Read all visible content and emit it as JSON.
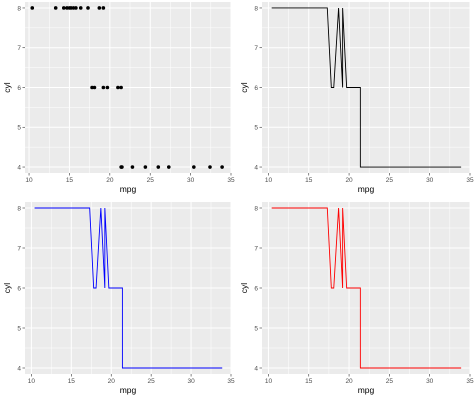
{
  "chart_data": [
    {
      "type": "scatter",
      "xlabel": "mpg",
      "ylabel": "cyl",
      "xlim": [
        9.5,
        35
      ],
      "ylim": [
        3.85,
        8.15
      ],
      "x_ticks": [
        10,
        15,
        20,
        25,
        30,
        35
      ],
      "y_ticks": [
        4,
        5,
        6,
        7,
        8
      ],
      "grid": true,
      "color": "#000000",
      "points": [
        {
          "x": 10.4,
          "y": 8
        },
        {
          "x": 13.3,
          "y": 8
        },
        {
          "x": 14.3,
          "y": 8
        },
        {
          "x": 14.7,
          "y": 8
        },
        {
          "x": 15.0,
          "y": 8
        },
        {
          "x": 15.2,
          "y": 8
        },
        {
          "x": 15.5,
          "y": 8
        },
        {
          "x": 15.8,
          "y": 8
        },
        {
          "x": 16.4,
          "y": 8
        },
        {
          "x": 17.3,
          "y": 8
        },
        {
          "x": 18.7,
          "y": 8
        },
        {
          "x": 19.2,
          "y": 8
        },
        {
          "x": 17.8,
          "y": 6
        },
        {
          "x": 18.1,
          "y": 6
        },
        {
          "x": 19.2,
          "y": 6
        },
        {
          "x": 19.7,
          "y": 6
        },
        {
          "x": 21.0,
          "y": 6
        },
        {
          "x": 21.4,
          "y": 6
        },
        {
          "x": 21.4,
          "y": 4
        },
        {
          "x": 21.5,
          "y": 4
        },
        {
          "x": 22.8,
          "y": 4
        },
        {
          "x": 24.4,
          "y": 4
        },
        {
          "x": 26.0,
          "y": 4
        },
        {
          "x": 27.3,
          "y": 4
        },
        {
          "x": 30.4,
          "y": 4
        },
        {
          "x": 32.4,
          "y": 4
        },
        {
          "x": 33.9,
          "y": 4
        }
      ]
    },
    {
      "type": "line",
      "xlabel": "mpg",
      "ylabel": "cyl",
      "xlim": [
        9.2,
        35
      ],
      "ylim": [
        3.85,
        8.15
      ],
      "x_ticks": [
        10,
        15,
        20,
        25,
        30,
        35
      ],
      "y_ticks": [
        4,
        5,
        6,
        7,
        8
      ],
      "grid": true,
      "color": "#000000",
      "points": [
        {
          "x": 10.4,
          "y": 8
        },
        {
          "x": 17.3,
          "y": 8
        },
        {
          "x": 17.8,
          "y": 6
        },
        {
          "x": 18.1,
          "y": 6
        },
        {
          "x": 18.7,
          "y": 8
        },
        {
          "x": 19.2,
          "y": 6
        },
        {
          "x": 19.2,
          "y": 8
        },
        {
          "x": 19.7,
          "y": 6
        },
        {
          "x": 21.0,
          "y": 6
        },
        {
          "x": 21.4,
          "y": 6
        },
        {
          "x": 21.4,
          "y": 4
        },
        {
          "x": 33.9,
          "y": 4
        }
      ]
    },
    {
      "type": "line",
      "xlabel": "mpg",
      "ylabel": "cyl",
      "xlim": [
        9.2,
        35
      ],
      "ylim": [
        3.85,
        8.15
      ],
      "x_ticks": [
        10,
        15,
        20,
        25,
        30,
        35
      ],
      "y_ticks": [
        4,
        5,
        6,
        7,
        8
      ],
      "grid": true,
      "color": "#0000ff",
      "points": [
        {
          "x": 10.4,
          "y": 8
        },
        {
          "x": 17.3,
          "y": 8
        },
        {
          "x": 17.8,
          "y": 6
        },
        {
          "x": 18.1,
          "y": 6
        },
        {
          "x": 18.7,
          "y": 8
        },
        {
          "x": 19.2,
          "y": 6
        },
        {
          "x": 19.2,
          "y": 8
        },
        {
          "x": 19.7,
          "y": 6
        },
        {
          "x": 21.0,
          "y": 6
        },
        {
          "x": 21.4,
          "y": 6
        },
        {
          "x": 21.4,
          "y": 4
        },
        {
          "x": 33.9,
          "y": 4
        }
      ]
    },
    {
      "type": "line",
      "xlabel": "mpg",
      "ylabel": "cyl",
      "xlim": [
        9.2,
        35
      ],
      "ylim": [
        3.85,
        8.15
      ],
      "x_ticks": [
        10,
        15,
        20,
        25,
        30,
        35
      ],
      "y_ticks": [
        4,
        5,
        6,
        7,
        8
      ],
      "grid": true,
      "color": "#ff0000",
      "points": [
        {
          "x": 10.4,
          "y": 8
        },
        {
          "x": 17.3,
          "y": 8
        },
        {
          "x": 17.8,
          "y": 6
        },
        {
          "x": 18.1,
          "y": 6
        },
        {
          "x": 18.7,
          "y": 8
        },
        {
          "x": 19.2,
          "y": 6
        },
        {
          "x": 19.2,
          "y": 8
        },
        {
          "x": 19.7,
          "y": 6
        },
        {
          "x": 21.0,
          "y": 6
        },
        {
          "x": 21.4,
          "y": 6
        },
        {
          "x": 21.4,
          "y": 4
        },
        {
          "x": 33.9,
          "y": 4
        }
      ]
    }
  ]
}
